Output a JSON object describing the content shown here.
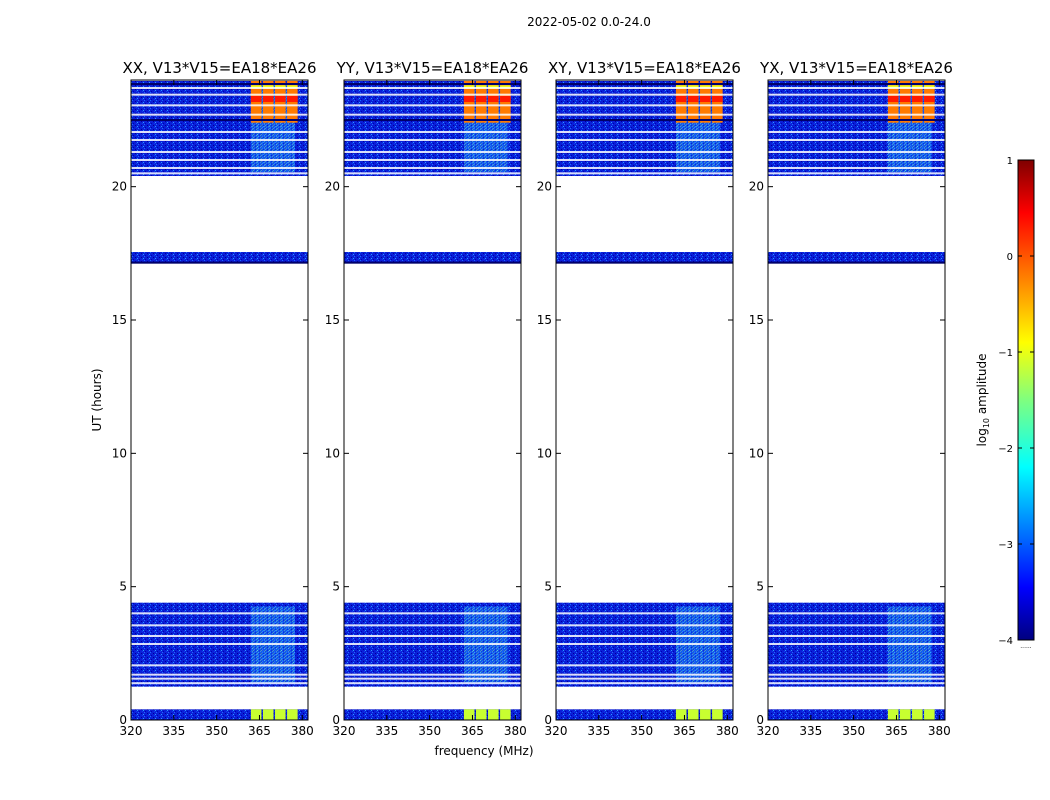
{
  "chart_data": {
    "type": "heatmap",
    "title": "2022-05-02 0.0-24.0",
    "xlabel": "frequency (MHz)",
    "ylabel": "UT (hours)",
    "xlim": [
      320,
      382
    ],
    "ylim": [
      0,
      24
    ],
    "xticks": [
      "320",
      "335",
      "350",
      "365",
      "380"
    ],
    "yticks": [
      "0",
      "5",
      "10",
      "15",
      "20"
    ],
    "panels": [
      {
        "title": "XX, V13*V15=EA18*EA26"
      },
      {
        "title": "YY, V13*V15=EA18*EA26"
      },
      {
        "title": "XY, V13*V15=EA18*EA26"
      },
      {
        "title": "YX, V13*V15=EA18*EA26"
      }
    ],
    "colorbar": {
      "label": "log",
      "label_sub": "10",
      "label_rest": " amplitude",
      "range": [
        -4,
        1
      ],
      "ticks": [
        "−4",
        "−3",
        "−2",
        "−1",
        "0",
        "1"
      ],
      "footnote": "......"
    },
    "observed_time_blocks_hours": [
      [
        0.0,
        0.4
      ],
      [
        1.25,
        4.4
      ],
      [
        17.15,
        17.55
      ],
      [
        20.4,
        24.0
      ]
    ],
    "hot_band_mhz": [
      362,
      381
    ],
    "colors": {
      "low": "#00008f",
      "high": "#800000"
    }
  }
}
